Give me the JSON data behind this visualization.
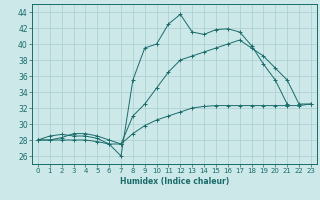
{
  "title": "",
  "xlabel": "Humidex (Indice chaleur)",
  "background_color": "#cce8e8",
  "grid_color": "#aacece",
  "line_color": "#1a6b6b",
  "xlim": [
    -0.5,
    23.5
  ],
  "ylim": [
    25.0,
    45.0
  ],
  "yticks": [
    26,
    28,
    30,
    32,
    34,
    36,
    38,
    40,
    42,
    44
  ],
  "xticks": [
    0,
    1,
    2,
    3,
    4,
    5,
    6,
    7,
    8,
    9,
    10,
    11,
    12,
    13,
    14,
    15,
    16,
    17,
    18,
    19,
    20,
    21,
    22,
    23
  ],
  "curves": [
    {
      "x": [
        0,
        1,
        2,
        3,
        4,
        5,
        6,
        7,
        8,
        9,
        10,
        11,
        12,
        13,
        14,
        15,
        16,
        17,
        18,
        19,
        20,
        21
      ],
      "y": [
        28,
        28.5,
        28.7,
        28.5,
        28.5,
        28.2,
        27.5,
        26.0,
        35.5,
        39.5,
        40.0,
        42.5,
        43.7,
        41.5,
        41.2,
        41.8,
        41.9,
        41.5,
        39.8,
        37.5,
        35.5,
        32.5
      ]
    },
    {
      "x": [
        0,
        1,
        2,
        3,
        4,
        5,
        6,
        7,
        8,
        9,
        10,
        11,
        12,
        13,
        14,
        15,
        16,
        17,
        18,
        19,
        20,
        21,
        22,
        23
      ],
      "y": [
        28,
        28.0,
        28.3,
        28.8,
        28.8,
        28.5,
        28.0,
        27.5,
        31.0,
        32.5,
        34.5,
        36.5,
        38.0,
        38.5,
        39.0,
        39.5,
        40.0,
        40.5,
        39.5,
        38.5,
        37.0,
        35.5,
        32.5,
        32.5
      ]
    },
    {
      "x": [
        0,
        1,
        2,
        3,
        4,
        5,
        6,
        7,
        8,
        9,
        10,
        11,
        12,
        13,
        14,
        15,
        16,
        17,
        18,
        19,
        20,
        21,
        22,
        23
      ],
      "y": [
        28,
        28.0,
        28.0,
        28.0,
        28.0,
        27.8,
        27.5,
        27.5,
        28.8,
        29.8,
        30.5,
        31.0,
        31.5,
        32.0,
        32.2,
        32.3,
        32.3,
        32.3,
        32.3,
        32.3,
        32.3,
        32.3,
        32.3,
        32.5
      ]
    }
  ]
}
